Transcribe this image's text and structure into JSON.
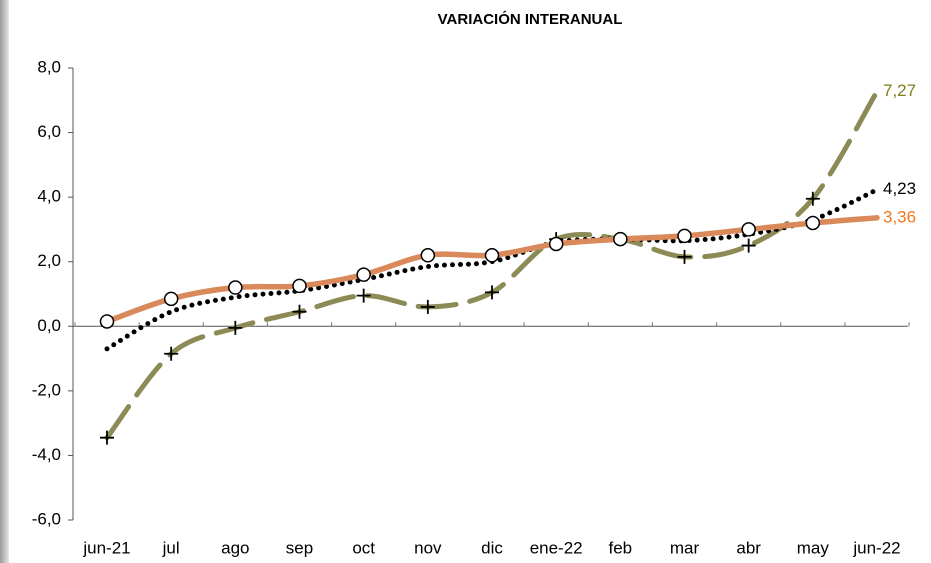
{
  "chart_data": {
    "type": "line",
    "title": "VARIACIÓN INTERANUAL",
    "categories": [
      "jun-21",
      "jul",
      "ago",
      "sep",
      "oct",
      "nov",
      "dic",
      "ene-22",
      "feb",
      "mar",
      "abr",
      "may",
      "jun-22"
    ],
    "ylim": [
      -6,
      8
    ],
    "yticks": [
      {
        "value": -6,
        "label": "-6,0"
      },
      {
        "value": -4,
        "label": "-4,0"
      },
      {
        "value": -2,
        "label": "-2,0"
      },
      {
        "value": 0,
        "label": "0,0"
      },
      {
        "value": 2,
        "label": "2,0"
      },
      {
        "value": 4,
        "label": "4,0"
      },
      {
        "value": 6,
        "label": "6,0"
      },
      {
        "value": 8,
        "label": "8,0"
      }
    ],
    "series": [
      {
        "color": "#8c8a55",
        "label_color": "#7f7d1c",
        "style": "dashed",
        "marker": "plus",
        "values": [
          -3.45,
          -0.85,
          -0.05,
          0.45,
          0.95,
          0.6,
          1.05,
          2.7,
          2.7,
          2.15,
          2.5,
          3.95,
          7.27
        ],
        "value_labels": [
          null,
          null,
          null,
          null,
          null,
          null,
          null,
          null,
          null,
          null,
          null,
          null,
          "7,27"
        ]
      },
      {
        "color": "#000000",
        "label_color": "#000000",
        "style": "dotted",
        "marker": "none",
        "values": [
          -0.7,
          0.45,
          0.9,
          1.1,
          1.45,
          1.85,
          2.0,
          2.6,
          2.7,
          2.65,
          2.85,
          3.3,
          4.23
        ],
        "value_labels": [
          null,
          null,
          null,
          null,
          null,
          null,
          null,
          null,
          null,
          null,
          null,
          null,
          "4,23"
        ]
      },
      {
        "color": "#d9895a",
        "label_color": "#f07820",
        "style": "solid",
        "marker": "circle",
        "values": [
          0.15,
          0.85,
          1.2,
          1.25,
          1.6,
          2.2,
          2.2,
          2.55,
          2.7,
          2.8,
          3.0,
          3.2,
          3.36
        ],
        "value_labels": [
          null,
          null,
          null,
          null,
          null,
          null,
          null,
          null,
          null,
          null,
          null,
          null,
          "3,36"
        ]
      }
    ]
  }
}
